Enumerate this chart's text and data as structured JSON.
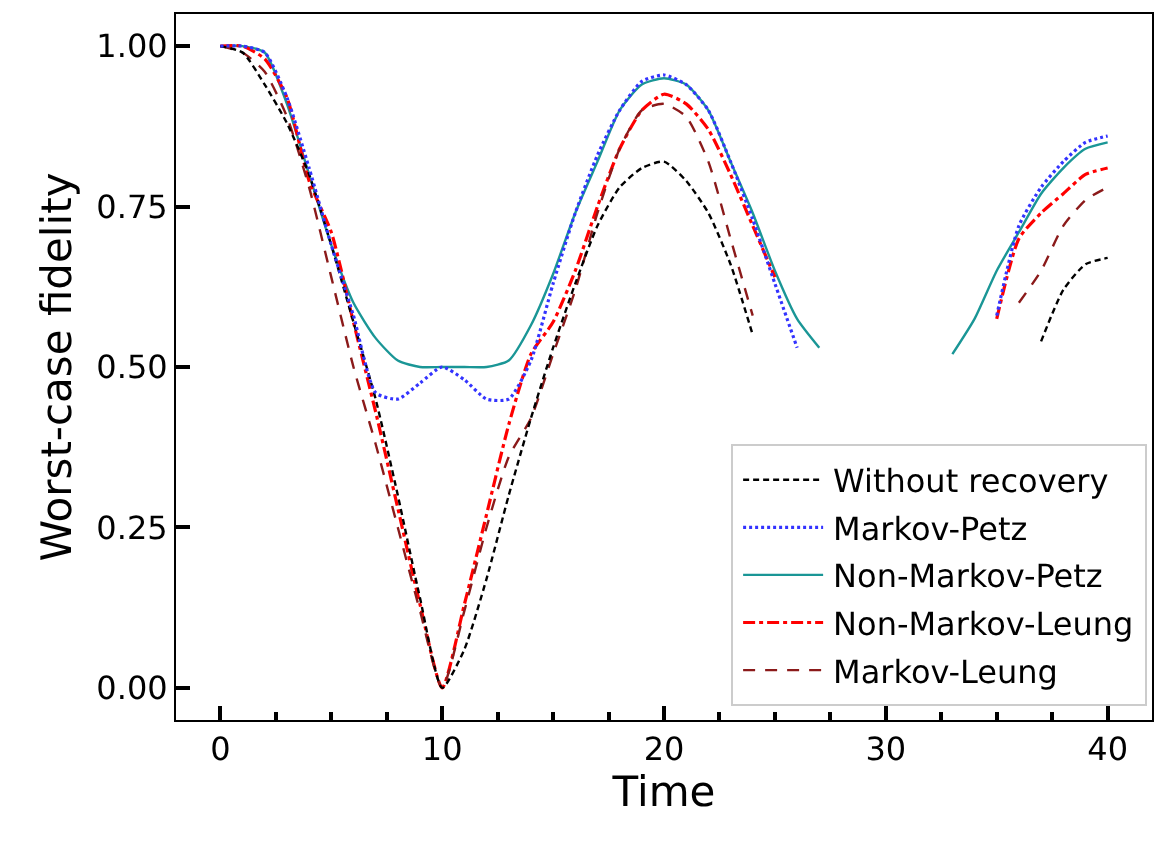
{
  "chart_data": {
    "type": "line",
    "xlabel": "Time",
    "ylabel": "Worst-case fidelity",
    "x": [
      0,
      1,
      2,
      3,
      4,
      5,
      6,
      7,
      8,
      9,
      10,
      11,
      12,
      13,
      14,
      15,
      16,
      17,
      18,
      19,
      20,
      21,
      22,
      23,
      24,
      25,
      26,
      27,
      28,
      29,
      30,
      31,
      32,
      33,
      34,
      35,
      36,
      37,
      38,
      39,
      40
    ],
    "series": [
      {
        "name": "Without recovery",
        "color": "#000000",
        "line_style": "dashed",
        "values": [
          1.0,
          0.99,
          0.94,
          0.88,
          0.8,
          0.69,
          0.57,
          0.45,
          0.3,
          0.14,
          0.0,
          0.06,
          0.17,
          0.3,
          0.42,
          0.53,
          0.63,
          0.72,
          0.78,
          0.81,
          0.82,
          0.79,
          0.74,
          0.66,
          0.55,
          null,
          null,
          null,
          null,
          null,
          null,
          null,
          null,
          null,
          null,
          null,
          null,
          0.54,
          0.62,
          0.66,
          0.67
        ]
      },
      {
        "name": "Markov-Petz",
        "color": "#3333ff",
        "line_style": "dotted",
        "values": [
          1.0,
          1.0,
          0.99,
          0.92,
          0.81,
          0.69,
          0.58,
          0.46,
          0.45,
          0.475,
          0.5,
          0.48,
          0.45,
          0.45,
          0.51,
          0.63,
          0.74,
          0.83,
          0.9,
          0.945,
          0.955,
          0.94,
          0.9,
          0.82,
          0.73,
          0.63,
          0.53,
          null,
          null,
          null,
          null,
          null,
          null,
          null,
          null,
          0.58,
          0.72,
          0.78,
          0.82,
          0.85,
          0.86
        ]
      },
      {
        "name": "Non-Markov-Petz",
        "color": "#1a9696",
        "line_style": "solid",
        "values": [
          1.0,
          1.0,
          0.99,
          0.91,
          0.8,
          0.69,
          0.6,
          0.545,
          0.51,
          0.5,
          0.5,
          0.5,
          0.5,
          0.51,
          0.565,
          0.645,
          0.74,
          0.82,
          0.9,
          0.94,
          0.95,
          0.94,
          0.9,
          0.82,
          0.74,
          0.65,
          0.575,
          0.53,
          null,
          null,
          null,
          null,
          null,
          0.52,
          0.575,
          0.65,
          0.71,
          0.77,
          0.81,
          0.84,
          0.85
        ]
      },
      {
        "name": "Non-Markov-Leung",
        "color": "#ff0000",
        "line_style": "dashdot",
        "values": [
          1.0,
          1.0,
          0.98,
          0.92,
          0.79,
          0.71,
          0.57,
          0.43,
          0.28,
          0.13,
          0.0,
          0.13,
          0.27,
          0.41,
          0.52,
          0.57,
          0.65,
          0.75,
          0.84,
          0.9,
          0.925,
          0.91,
          0.87,
          0.8,
          0.72,
          0.64,
          null,
          null,
          null,
          null,
          null,
          null,
          null,
          null,
          null,
          0.575,
          0.7,
          0.74,
          0.77,
          0.8,
          0.81
        ]
      },
      {
        "name": "Markov-Leung",
        "color": "#8b1a1a",
        "line_style": "longdash",
        "values": [
          1.0,
          0.99,
          0.96,
          0.89,
          0.78,
          0.64,
          0.5,
          0.38,
          0.25,
          0.12,
          0.0,
          0.12,
          0.25,
          0.36,
          0.42,
          0.52,
          0.62,
          0.74,
          0.84,
          0.9,
          0.91,
          0.89,
          0.82,
          0.7,
          0.58,
          null,
          null,
          null,
          null,
          null,
          null,
          null,
          null,
          null,
          null,
          null,
          0.6,
          0.65,
          0.72,
          0.76,
          0.78
        ]
      }
    ],
    "xlim": [
      -2,
      42
    ],
    "ylim": [
      -0.05,
      1.05
    ],
    "xticks": [
      0,
      10,
      20,
      30,
      40
    ],
    "yticks": [
      {
        "value": 0,
        "label": "0.00"
      },
      {
        "value": 0.25,
        "label": "0.25"
      },
      {
        "value": 0.5,
        "label": "0.50"
      },
      {
        "value": 0.75,
        "label": "0.75"
      },
      {
        "value": 1,
        "label": "1.00"
      }
    ],
    "grid": false,
    "legend": "bottom right",
    "marker": "none"
  }
}
